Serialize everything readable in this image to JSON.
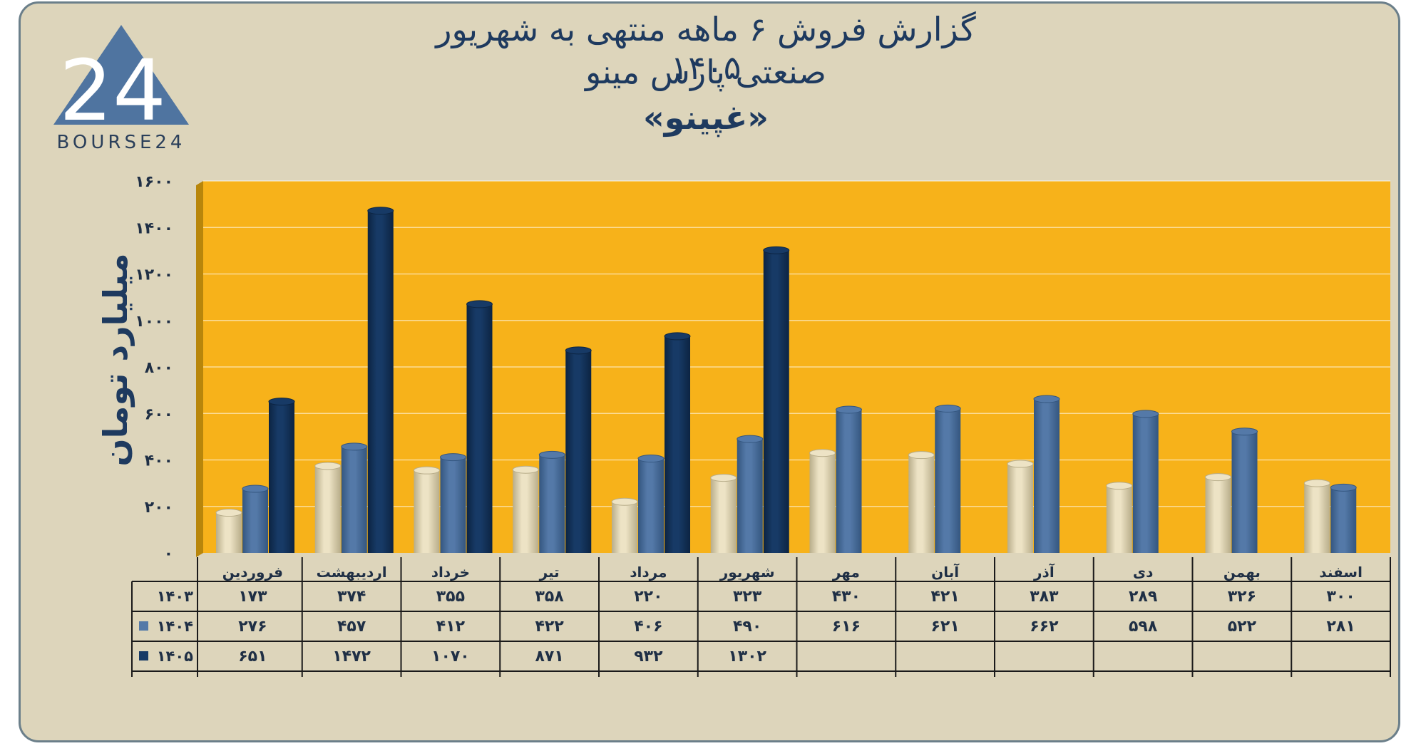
{
  "title_line1": "گزارش  فروش ۶ ماهه منتهی به شهریور ۱۴۰۵",
  "title_line2": "صنعتی پارس مینو",
  "title_line3": "«غپینو»",
  "logo": {
    "text": "BOURSE24",
    "mark": "24"
  },
  "colors": {
    "background": "#ddd5bb",
    "plot": "#f7b21a",
    "s1403": "#ede3c5",
    "s1404": "#5479a8",
    "s1405": "#173a66",
    "text": "#1e3a5f"
  },
  "chart_data": {
    "type": "bar",
    "ylabel": "میلیارد تومان",
    "ylim": [
      0,
      1600
    ],
    "yticks": [
      "۰",
      "۲۰۰",
      "۴۰۰",
      "۶۰۰",
      "۸۰۰",
      "۱۰۰۰",
      "۱۲۰۰",
      "۱۴۰۰",
      "۱۶۰۰"
    ],
    "categories": [
      "فروردین",
      "اردیبهشت",
      "خرداد",
      "تیر",
      "مرداد",
      "شهریور",
      "مهر",
      "آبان",
      "آذر",
      "دی",
      "بهمن",
      "اسفند"
    ],
    "series": [
      {
        "name": "۱۴۰۳",
        "values": [
          173,
          374,
          355,
          358,
          220,
          323,
          430,
          421,
          383,
          289,
          326,
          300
        ],
        "labels": [
          "۱۷۳",
          "۳۷۴",
          "۳۵۵",
          "۳۵۸",
          "۲۲۰",
          "۳۲۳",
          "۴۳۰",
          "۴۲۱",
          "۳۸۳",
          "۲۸۹",
          "۳۲۶",
          "۳۰۰"
        ]
      },
      {
        "name": "۱۴۰۴",
        "values": [
          276,
          457,
          412,
          422,
          406,
          490,
          616,
          621,
          662,
          598,
          522,
          281
        ],
        "labels": [
          "۲۷۶",
          "۴۵۷",
          "۴۱۲",
          "۴۲۲",
          "۴۰۶",
          "۴۹۰",
          "۶۱۶",
          "۶۲۱",
          "۶۶۲",
          "۵۹۸",
          "۵۲۲",
          "۲۸۱"
        ]
      },
      {
        "name": "۱۴۰۵",
        "values": [
          651,
          1472,
          1070,
          871,
          932,
          1302,
          null,
          null,
          null,
          null,
          null,
          null
        ],
        "labels": [
          "۶۵۱",
          "۱۴۷۲",
          "۱۰۷۰",
          "۸۷۱",
          "۹۳۲",
          "۱۳۰۲",
          "",
          "",
          "",
          "",
          "",
          ""
        ]
      }
    ],
    "grid": true,
    "legend": "table"
  }
}
